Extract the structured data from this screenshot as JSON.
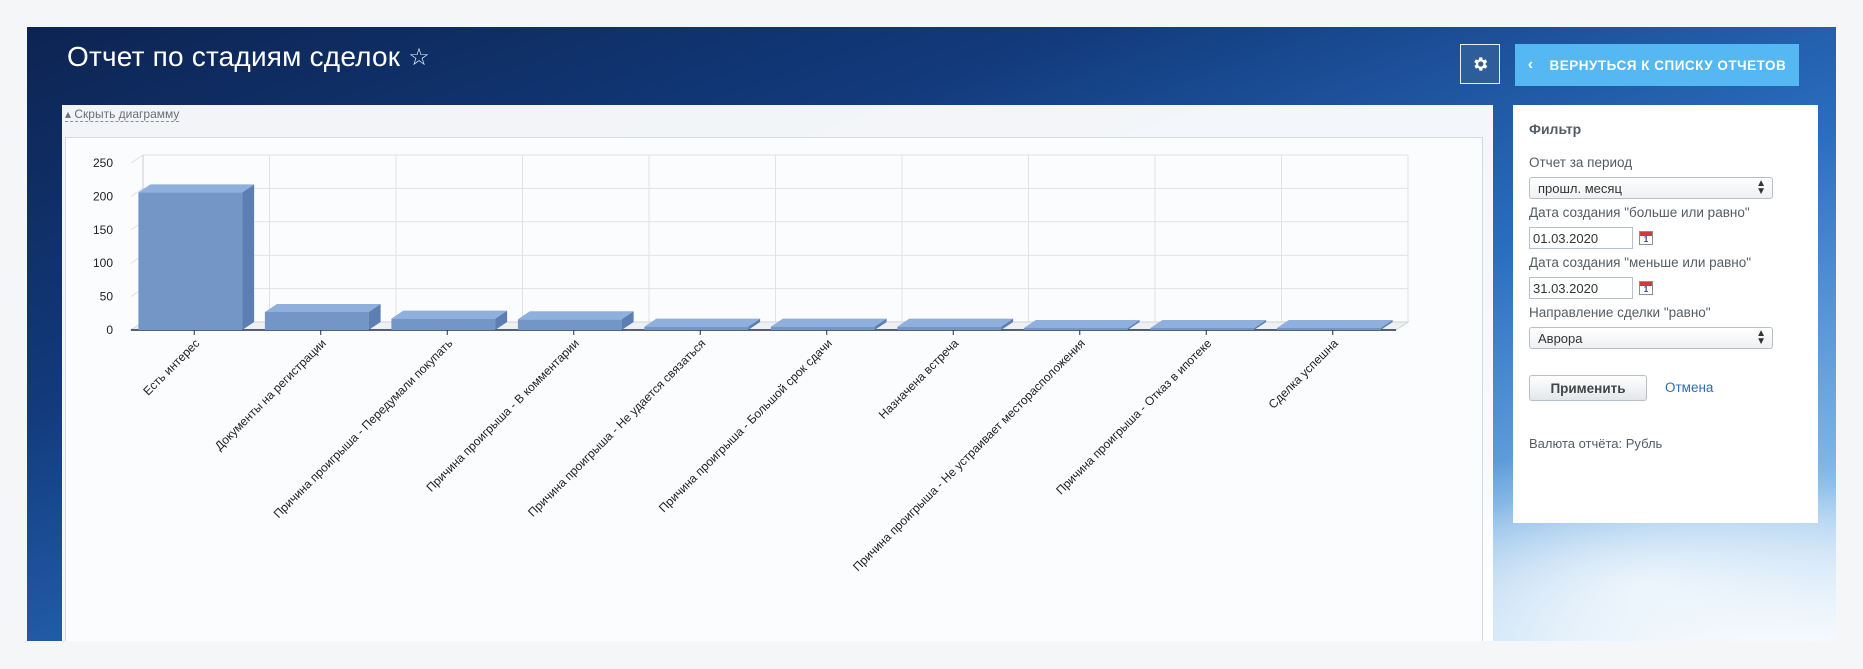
{
  "header": {
    "title": "Отчет по стадиям сделок",
    "favorite_icon": "star-icon",
    "settings_icon": "gear-icon",
    "back_button_label": "ВЕРНУТЬСЯ К СПИСКУ ОТЧЕТОВ"
  },
  "chart_panel": {
    "hide_link": "Скрыть диаграмму"
  },
  "filter": {
    "title": "Фильтр",
    "period_label": "Отчет за период",
    "period_value": "прошл. месяц",
    "date_from_label": "Дата создания \"больше или равно\"",
    "date_from_value": "01.03.2020",
    "date_to_label": "Дата создания \"меньше или равно\"",
    "date_to_value": "31.03.2020",
    "direction_label": "Направление сделки \"равно\"",
    "direction_value": "Аврора",
    "apply_label": "Применить",
    "cancel_label": "Отмена",
    "currency_text": "Валюта отчёта: Рубль"
  },
  "colors": {
    "bar_front": "#7396c6",
    "bar_top": "#8fb0dc",
    "bar_side": "#5b7fb2",
    "back_button": "#56b8f2"
  },
  "chart_data": {
    "type": "bar",
    "title": "",
    "xlabel": "",
    "ylabel": "",
    "ylim": [
      0,
      250
    ],
    "yticks": [
      0,
      50,
      100,
      150,
      200,
      250
    ],
    "grid": true,
    "three_d": true,
    "categories": [
      "Есть интерес",
      "Документы на регистрации",
      "Причина проигрыша - Передумали покупать",
      "Причина проигрыша - В комментарии",
      "Причина проигрыша - Не удается связаться",
      "Причина проигрыша - Большой срок сдачи",
      "Назначена встреча",
      "Причина проигрыша - Не устраивает месторасположения",
      "Причина проигрыша - Отказ в ипотеке",
      "Сделка успешна"
    ],
    "values": [
      206,
      27,
      17,
      16,
      5,
      5,
      5,
      3,
      3,
      1
    ]
  }
}
